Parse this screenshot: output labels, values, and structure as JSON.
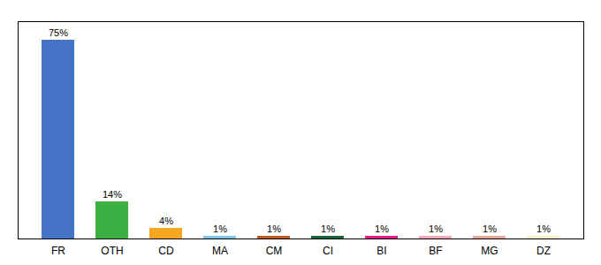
{
  "chart_data": {
    "type": "bar",
    "categories": [
      "FR",
      "OTH",
      "CD",
      "MA",
      "CM",
      "CI",
      "BI",
      "BF",
      "MG",
      "DZ"
    ],
    "values": [
      75,
      14,
      4,
      1,
      1,
      1,
      1,
      1,
      1,
      1
    ],
    "value_labels": [
      "75%",
      "14%",
      "4%",
      "1%",
      "1%",
      "1%",
      "1%",
      "1%",
      "1%",
      "1%"
    ],
    "colors": [
      "#4472C4",
      "#3CB043",
      "#F5A623",
      "#7EC8E3",
      "#C0581A",
      "#1B6B3A",
      "#E91E8C",
      "#F4A7B9",
      "#E8A898",
      "#F5F0C8"
    ],
    "ylim": [
      0,
      82
    ],
    "data_labels": true,
    "tick_labels": "x",
    "grid": false
  }
}
